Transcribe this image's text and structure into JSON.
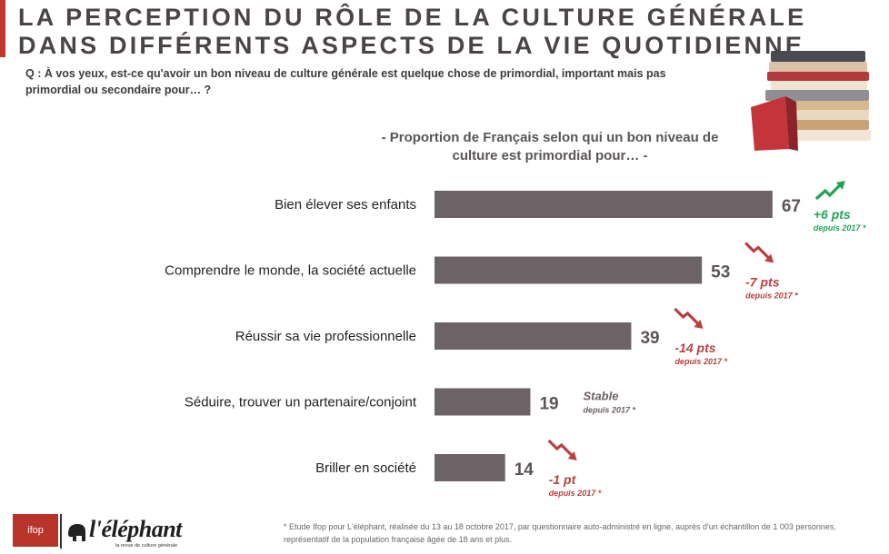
{
  "title": "LA PERCEPTION DU RÔLE DE LA CULTURE GÉNÉRALE DANS DIFFÉRENTS ASPECTS DE LA VIE QUOTIDIENNE",
  "question": "Q : À vos yeux, est-ce qu'avoir un bon niveau de culture générale est quelque chose de primordial, important mais pas primordial ou secondaire pour… ?",
  "colors": {
    "bar": "#6d6265",
    "up": "#23a455",
    "down": "#b8403f",
    "neutral": "#6d6265",
    "accent": "#c0392b"
  },
  "chart_data": {
    "type": "bar",
    "orientation": "horizontal",
    "title": "- Proportion de Français selon qui un bon niveau de culture est primordial pour… -",
    "categories": [
      "Bien élever ses enfants",
      "Comprendre le monde, la société actuelle",
      "Réussir sa vie professionnelle",
      "Séduire, trouver un partenaire/conjoint",
      "Briller en société"
    ],
    "values": [
      67,
      53,
      39,
      19,
      14
    ],
    "xlim": [
      0,
      100
    ],
    "grid": false,
    "changes": [
      {
        "trend": "up",
        "label": "+6 pts",
        "since": "depuis 2017 *"
      },
      {
        "trend": "down",
        "label": "-7 pts",
        "since": "depuis 2017 *"
      },
      {
        "trend": "down",
        "label": "-14 pts",
        "since": "depuis 2017 *"
      },
      {
        "trend": "stable",
        "label": "Stable",
        "since": "depuis 2017 *"
      },
      {
        "trend": "down",
        "label": "-1 pt",
        "since": "depuis 2017 *"
      }
    ]
  },
  "logos": {
    "ifop": "ifop",
    "elephant": "l'éléphant",
    "elephant_tagline": "la revue de culture générale"
  },
  "footnote": "* Etude Ifop pour L'éléphant, réalisée du 13 au 18 octobre 2017, par questionnaire auto-administré en ligne, auprès d'un échantillon de 1 003 personnes, représentatif de la population française âgée de 18 ans et plus."
}
